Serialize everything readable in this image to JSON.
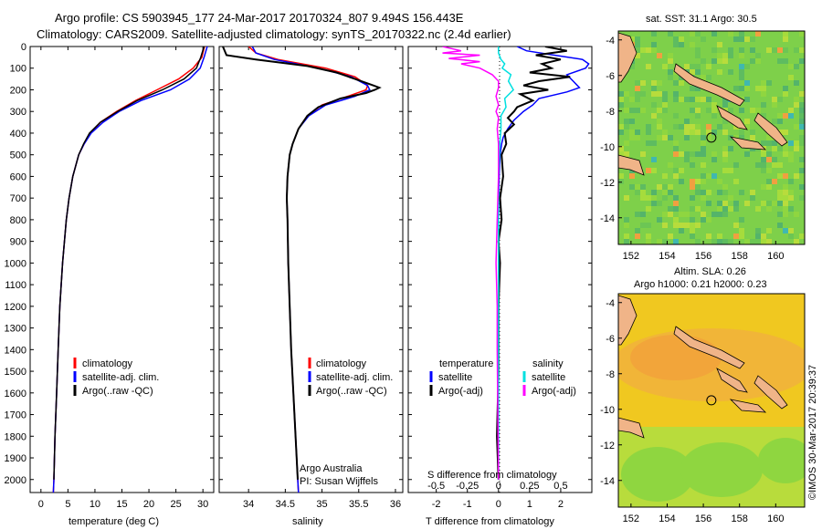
{
  "title_line1": "Argo profile: CS 5903945_177 24-Mar-2017 20170324_807 9.494S 156.443E",
  "title_line2": "Climatology: CARS2009. Satellite-adjusted climatology: synTS_20170322.nc (2.4d earlier)",
  "colors": {
    "clim": "#ff0000",
    "sat": "#0000ff",
    "argo": "#000000",
    "sat_s": "#00e0e0",
    "argo_s": "#ff00ff"
  },
  "depth_ticks": [
    "0",
    "100",
    "200",
    "300",
    "400",
    "500",
    "600",
    "700",
    "800",
    "900",
    "1000",
    "1100",
    "1200",
    "1300",
    "1400",
    "1500",
    "1600",
    "1700",
    "1800",
    "1900",
    "2000"
  ],
  "chart_data": [
    {
      "type": "line",
      "name": "temperature",
      "xlabel": "temperature (deg C)",
      "ylabel": "",
      "xlim": [
        -2,
        32
      ],
      "ylim": [
        2060,
        0
      ],
      "xticks": [
        0,
        5,
        10,
        15,
        20,
        25,
        30
      ],
      "legend": [
        "climatology",
        "satellite-adj. clim.",
        "Argo(..raw -QC)"
      ],
      "series": [
        {
          "name": "climatology",
          "depth": [
            0,
            50,
            100,
            150,
            200,
            250,
            300,
            350,
            400,
            450,
            500,
            600,
            700,
            800,
            1000,
            1200,
            1400,
            1600,
            1800,
            2000,
            2060
          ],
          "values": [
            30.3,
            29.8,
            28.2,
            25.5,
            21.5,
            17.5,
            14.0,
            11.0,
            9.2,
            8.0,
            7.0,
            5.9,
            5.2,
            4.7,
            4.0,
            3.5,
            3.2,
            2.9,
            2.6,
            2.4,
            2.3
          ]
        },
        {
          "name": "satellite-adj. clim.",
          "depth": [
            0,
            50,
            100,
            150,
            200,
            250,
            300,
            350,
            400,
            450,
            500,
            600,
            700,
            800,
            1000,
            1200,
            1400,
            1600,
            1800,
            2000,
            2060
          ],
          "values": [
            30.8,
            30.2,
            29.5,
            27.5,
            24.0,
            18.5,
            14.5,
            11.5,
            9.3,
            8.0,
            7.0,
            5.9,
            5.2,
            4.7,
            4.0,
            3.5,
            3.2,
            2.9,
            2.6,
            2.4,
            2.3
          ]
        },
        {
          "name": "Argo(..raw -QC)",
          "depth": [
            0,
            50,
            100,
            150,
            200,
            250,
            300,
            350,
            400,
            450,
            500,
            600,
            700,
            800,
            1000,
            1200,
            1400,
            1600,
            1800,
            2000
          ],
          "values": [
            30.2,
            29.6,
            28.8,
            26.5,
            22.5,
            17.8,
            14.2,
            11.0,
            9.0,
            7.9,
            7.0,
            5.9,
            5.2,
            4.7,
            4.0,
            3.5,
            3.2,
            2.9,
            2.6,
            2.4
          ]
        }
      ]
    },
    {
      "type": "line",
      "name": "salinity",
      "xlabel": "salinity",
      "xlim": [
        33.6,
        36.1
      ],
      "ylim": [
        2060,
        0
      ],
      "xticks": [
        34,
        34.5,
        35,
        35.5,
        36
      ],
      "xticklabels": [
        "34",
        "34.5",
        "35",
        "35.5",
        "36"
      ],
      "legend": [
        "climatology",
        "satellite-adj. clim.",
        "Argo(..raw -QC)"
      ],
      "credit": [
        "Argo Australia",
        "PI: Susan Wijffels"
      ],
      "series": [
        {
          "name": "climatology",
          "depth": [
            0,
            30,
            60,
            100,
            140,
            180,
            200,
            230,
            270,
            320,
            380,
            450,
            500,
            600,
            700,
            800,
            1000,
            1200,
            1400,
            1600,
            1800,
            2000,
            2060
          ],
          "values": [
            34.0,
            34.1,
            34.4,
            35.05,
            35.45,
            35.62,
            35.6,
            35.35,
            35.0,
            34.8,
            34.68,
            34.6,
            34.56,
            34.53,
            34.52,
            34.53,
            34.54,
            34.56,
            34.58,
            34.61,
            34.64,
            34.67,
            34.68
          ]
        },
        {
          "name": "satellite-adj. clim.",
          "depth": [
            0,
            30,
            60,
            100,
            140,
            180,
            200,
            230,
            270,
            320,
            380,
            450,
            500,
            600,
            700,
            800,
            1000,
            1200,
            1400,
            1600,
            1800,
            2000,
            2060
          ],
          "values": [
            34.05,
            34.1,
            34.35,
            34.95,
            35.4,
            35.62,
            35.65,
            35.45,
            35.05,
            34.82,
            34.68,
            34.6,
            34.56,
            34.53,
            34.52,
            34.53,
            34.54,
            34.56,
            34.58,
            34.61,
            34.64,
            34.67,
            34.68
          ]
        },
        {
          "name": "Argo(..raw -QC)",
          "depth": [
            0,
            40,
            60,
            90,
            120,
            150,
            180,
            190,
            200,
            215,
            240,
            280,
            320,
            380,
            450,
            500,
            600,
            700,
            800,
            1000,
            1200,
            1400,
            1600,
            1800,
            2000
          ],
          "values": [
            33.65,
            33.7,
            34.1,
            34.8,
            35.2,
            35.45,
            35.7,
            35.78,
            35.72,
            35.6,
            35.25,
            34.95,
            34.8,
            34.68,
            34.6,
            34.56,
            34.53,
            34.52,
            34.53,
            34.54,
            34.56,
            34.58,
            34.61,
            34.64,
            34.67
          ]
        }
      ]
    },
    {
      "type": "line",
      "name": "difference",
      "xlabel": "T difference from climatology",
      "xlabel_top": "S difference from climatology",
      "xlim": [
        -2.9,
        3.0
      ],
      "ylim": [
        2060,
        0
      ],
      "xticks": [
        -2,
        -1,
        0,
        1,
        2
      ],
      "xticklabels": [
        "-2",
        "-1",
        "0",
        "1",
        "2"
      ],
      "s_ticklabels": [
        "-0.5",
        "-0.25",
        "0",
        "0.25",
        "0.5"
      ],
      "legend_temperature": [
        "temperature",
        "satellite",
        "Argo(-adj)"
      ],
      "legend_salinity": [
        "salinity",
        "satellite",
        "Argo(-adj)"
      ],
      "series": [
        {
          "name": "T satellite",
          "depth": [
            0,
            20,
            40,
            60,
            80,
            100,
            130,
            160,
            190,
            210,
            240,
            270,
            300,
            340,
            380,
            420,
            450,
            500,
            600,
            800,
            1000,
            1400,
            2000
          ],
          "values": [
            0.6,
            0.9,
            1.8,
            2.7,
            2.9,
            2.8,
            2.2,
            2.4,
            2.6,
            2.2,
            1.3,
            1.1,
            0.8,
            0.5,
            0.3,
            0.15,
            0.1,
            0.05,
            0.02,
            0.0,
            0.0,
            0.0,
            0.0
          ]
        },
        {
          "name": "T Argo(-adj)",
          "depth": [
            0,
            20,
            40,
            60,
            80,
            100,
            120,
            140,
            160,
            180,
            200,
            220,
            250,
            280,
            300,
            330,
            360,
            400,
            450,
            500,
            600,
            700,
            800,
            900,
            1000,
            1200,
            1500,
            1800,
            2000
          ],
          "values": [
            1.5,
            2.2,
            1.2,
            2.0,
            1.4,
            1.7,
            1.0,
            2.3,
            1.3,
            0.8,
            1.6,
            0.7,
            1.1,
            0.6,
            0.5,
            0.3,
            0.5,
            0.2,
            0.25,
            0.1,
            0.15,
            0.05,
            0.1,
            0.0,
            0.05,
            0.0,
            0.0,
            -0.05,
            0.0
          ]
        },
        {
          "name": "S satellite",
          "depth": [
            0,
            30,
            60,
            80,
            100,
            130,
            160,
            200,
            240,
            280,
            320,
            380,
            450,
            600,
            800,
            1000,
            1400,
            2000
          ],
          "values": [
            0.0,
            0.0,
            0.02,
            0.05,
            0.03,
            0.1,
            0.08,
            0.12,
            0.05,
            0.06,
            0.02,
            0.02,
            0.01,
            0.0,
            0.0,
            0.0,
            0.0,
            0.0
          ]
        },
        {
          "name": "S Argo(-adj)",
          "depth": [
            0,
            20,
            30,
            40,
            55,
            70,
            80,
            100,
            130,
            160,
            190,
            230,
            270,
            300,
            330,
            380,
            450,
            600,
            800,
            1000,
            1200,
            1400,
            2000
          ],
          "values": [
            -0.45,
            -0.3,
            -0.45,
            -0.15,
            -0.4,
            -0.15,
            -0.3,
            -0.15,
            -0.05,
            0.0,
            0.0,
            -0.02,
            0.0,
            -0.02,
            0.0,
            -0.01,
            0.0,
            0.0,
            -0.01,
            -0.02,
            -0.01,
            -0.01,
            0.0
          ]
        }
      ]
    },
    {
      "type": "heatmap",
      "name": "sat-sst-map",
      "title": "sat. SST: 31.1  Argo: 30.5",
      "xticks": [
        152,
        154,
        156,
        158,
        160
      ],
      "yticks": [
        -4,
        -6,
        -8,
        -10,
        -12,
        -14
      ],
      "xlim": [
        151.3,
        161.6
      ],
      "ylim": [
        -15.5,
        -3.5
      ],
      "argo_location": [
        156.443,
        -9.494
      ]
    },
    {
      "type": "heatmap",
      "name": "sla-map",
      "title": "Altim. SLA: 0.26",
      "subtitle": "Argo h1000: 0.21  h2000: 0.23",
      "xticks": [
        152,
        154,
        156,
        158,
        160
      ],
      "yticks": [
        -4,
        -6,
        -8,
        -10,
        -12,
        -14
      ],
      "xlim": [
        151.3,
        161.6
      ],
      "ylim": [
        -15.5,
        -3.5
      ],
      "argo_location": [
        156.443,
        -9.494
      ]
    }
  ],
  "footer_stamp": "©IMOS 30-Mar-2017 20:39:37"
}
